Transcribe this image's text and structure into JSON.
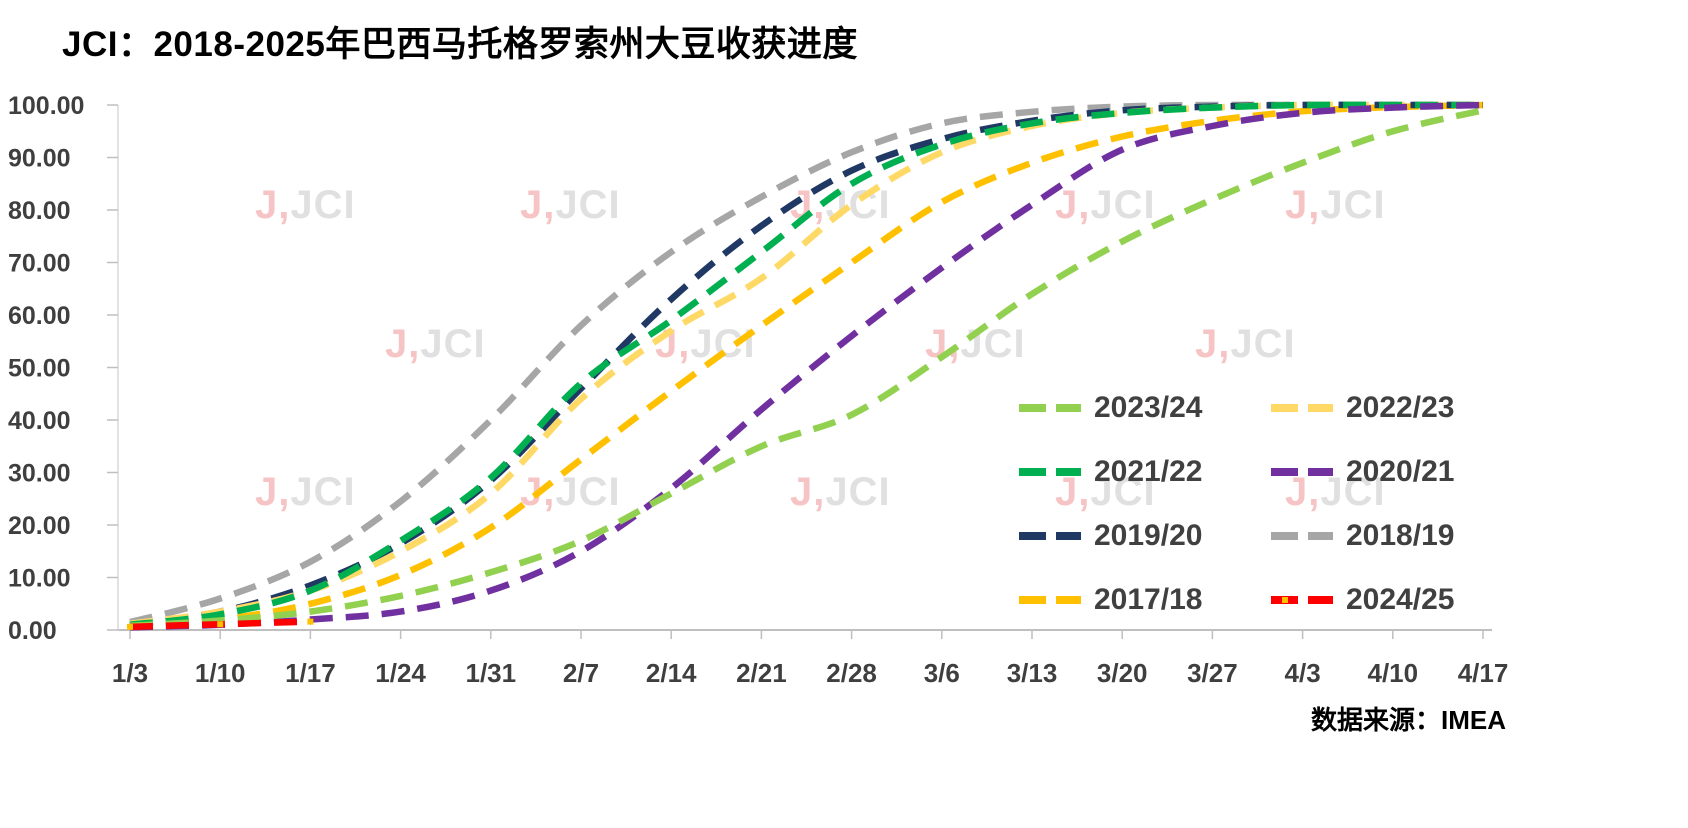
{
  "title": "JCI：2018-2025年巴西马托格罗索州大豆收获进度",
  "source": {
    "label": "数据来源：",
    "value": "IMEA"
  },
  "watermark": {
    "red": "J,",
    "gray": "JCI"
  },
  "chart_data": {
    "type": "line",
    "title": "JCI：2018-2025年巴西马托格罗索州大豆收获进度",
    "xlabel": "",
    "ylabel": "",
    "ylim": [
      0,
      100
    ],
    "grid": false,
    "line_style": "dashed",
    "legend_position": "inside-right",
    "x_categories": [
      "1/3",
      "1/10",
      "1/17",
      "1/24",
      "1/31",
      "2/7",
      "2/14",
      "2/21",
      "2/28",
      "3/6",
      "3/13",
      "3/20",
      "3/27",
      "4/3",
      "4/10",
      "4/17"
    ],
    "y_tick_labels": [
      "0.00",
      "10.00",
      "20.00",
      "30.00",
      "40.00",
      "50.00",
      "60.00",
      "70.00",
      "80.00",
      "90.00",
      "100.00"
    ],
    "series": [
      {
        "name": "2018/19",
        "color": "#A6A6A6",
        "values": [
          1.5,
          6,
          13,
          24.5,
          40,
          58,
          72,
          82.5,
          91,
          96.5,
          98.7,
          99.7,
          100,
          100,
          100,
          100
        ]
      },
      {
        "name": "2017/18",
        "color": "#FFC000",
        "values": [
          0.7,
          2,
          5,
          10.5,
          19.5,
          32.5,
          45.5,
          58,
          70,
          81.5,
          89,
          94,
          97,
          98.8,
          99.6,
          100
        ]
      },
      {
        "name": "2019/20",
        "color": "#1F3864",
        "values": [
          1,
          3.5,
          8.5,
          16.5,
          28.5,
          46,
          63,
          77,
          87.5,
          93.5,
          97,
          99,
          99.7,
          100,
          100,
          100
        ]
      },
      {
        "name": "2022/23",
        "color": "#FFD966",
        "values": [
          1.2,
          3.5,
          7.5,
          15,
          26,
          44,
          57,
          67,
          81,
          91,
          96,
          98.5,
          99.5,
          100,
          100,
          100
        ]
      },
      {
        "name": "2021/22",
        "color": "#00B050",
        "values": [
          1,
          3,
          7.5,
          17,
          29,
          47,
          59,
          72,
          85,
          92.5,
          96.5,
          98.5,
          99.5,
          100,
          100,
          100
        ]
      },
      {
        "name": "2020/21",
        "color": "#7030A0",
        "values": [
          0.5,
          1,
          2,
          3.5,
          7.5,
          15,
          27,
          42,
          56,
          69,
          81,
          91.5,
          96,
          98.5,
          99.5,
          100
        ]
      },
      {
        "name": "2023/24",
        "color": "#92D050",
        "values": [
          0.8,
          1.8,
          3.5,
          6.5,
          11,
          17,
          26,
          35,
          41,
          52,
          64,
          74,
          82,
          89,
          95,
          99
        ]
      },
      {
        "name": "2024/25",
        "color": "#FF0000",
        "marker_color": "#FFC000",
        "values": [
          0.6,
          1.1,
          1.6,
          null,
          null,
          null,
          null,
          null,
          null,
          null,
          null,
          null,
          null,
          null,
          null,
          null
        ]
      }
    ],
    "legend_order": [
      "2023/24",
      "2022/23",
      "2021/22",
      "2020/21",
      "2019/20",
      "2018/19",
      "2017/18",
      "2024/25"
    ]
  }
}
